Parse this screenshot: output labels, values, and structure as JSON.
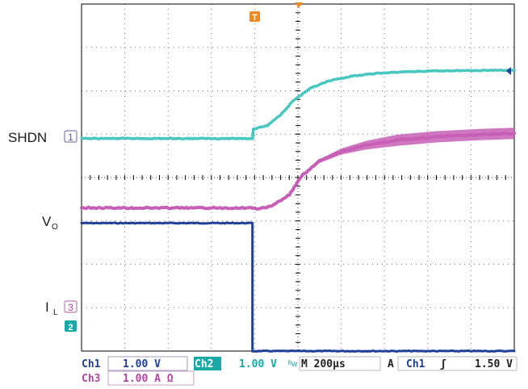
{
  "chart_data": {
    "type": "line",
    "title": "",
    "xlabel": "",
    "ylabel": "",
    "grid": true,
    "divisions": {
      "x": 10,
      "y": 8
    },
    "timebase": "200µs/div",
    "trigger_label": "T",
    "series": [
      {
        "name": "SHDN",
        "channel": "1",
        "scale": "1.00 V",
        "x_div": [
          0,
          3.95,
          3.95,
          10
        ],
        "y_div": [
          -1.05,
          -1.05,
          -4.0,
          -4.0
        ]
      },
      {
        "name": "VO",
        "channel": "2",
        "scale": "1.00 V",
        "x_div": [
          0,
          3.95,
          3.97,
          4.3,
          4.6,
          4.9,
          5.3,
          5.7,
          6.2,
          6.8,
          7.5,
          8.3,
          9.2,
          10
        ],
        "y_div": [
          0.9,
          0.9,
          1.12,
          1.2,
          1.45,
          1.78,
          2.06,
          2.22,
          2.33,
          2.4,
          2.44,
          2.46,
          2.47,
          2.48
        ]
      },
      {
        "name": "IL",
        "channel": "3",
        "scale": "1.00 A",
        "x_div": [
          0,
          3.95,
          4.1,
          4.4,
          4.8,
          5.1,
          5.5,
          6.0,
          6.6,
          7.3,
          8.2,
          9.2,
          10
        ],
        "y_div": [
          -0.7,
          -0.7,
          -0.72,
          -0.66,
          -0.4,
          0.05,
          0.38,
          0.6,
          0.75,
          0.86,
          0.94,
          0.99,
          1.02
        ]
      }
    ]
  },
  "labels": {
    "shdn": "SHDN",
    "v": "V",
    "v_sub": "O",
    "i": "I",
    "i_sub": "L",
    "marker1": "1",
    "marker2": "2",
    "marker3": "3"
  },
  "readout": {
    "ch1_name": "Ch1",
    "ch1_value": "1.00 V",
    "ch2_name": "Ch2",
    "ch2_value": "1.00 V",
    "bw_symbol": "ᴮw",
    "timebase": "M 200µs",
    "acq": "A",
    "trig_ch": "Ch1",
    "trig_slope": "ʃ",
    "trig_level": "1.50 V",
    "ch3_name": "Ch3",
    "ch3_value": "1.00 A Ω"
  },
  "colors": {
    "ch1": "#1f3f99",
    "ch2": "#48c7c0",
    "ch3": "#c85fb6",
    "trigger": "#f08a24",
    "grid": "#000000"
  }
}
